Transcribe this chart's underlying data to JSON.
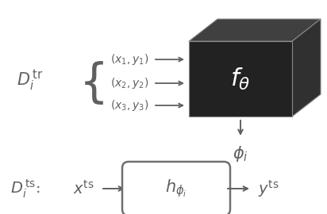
{
  "bg_color": "#ffffff",
  "text_color": "#606060",
  "cube_face_color": "#222222",
  "cube_edge_color": "#888888",
  "cube_top_color": "#404040",
  "cube_right_color": "#303030",
  "arrow_color": "#606060",
  "box_edge_color": "#707070",
  "box_fill_color": "#ffffff",
  "fig_width": 4.12,
  "fig_height": 2.7,
  "dpi": 100
}
